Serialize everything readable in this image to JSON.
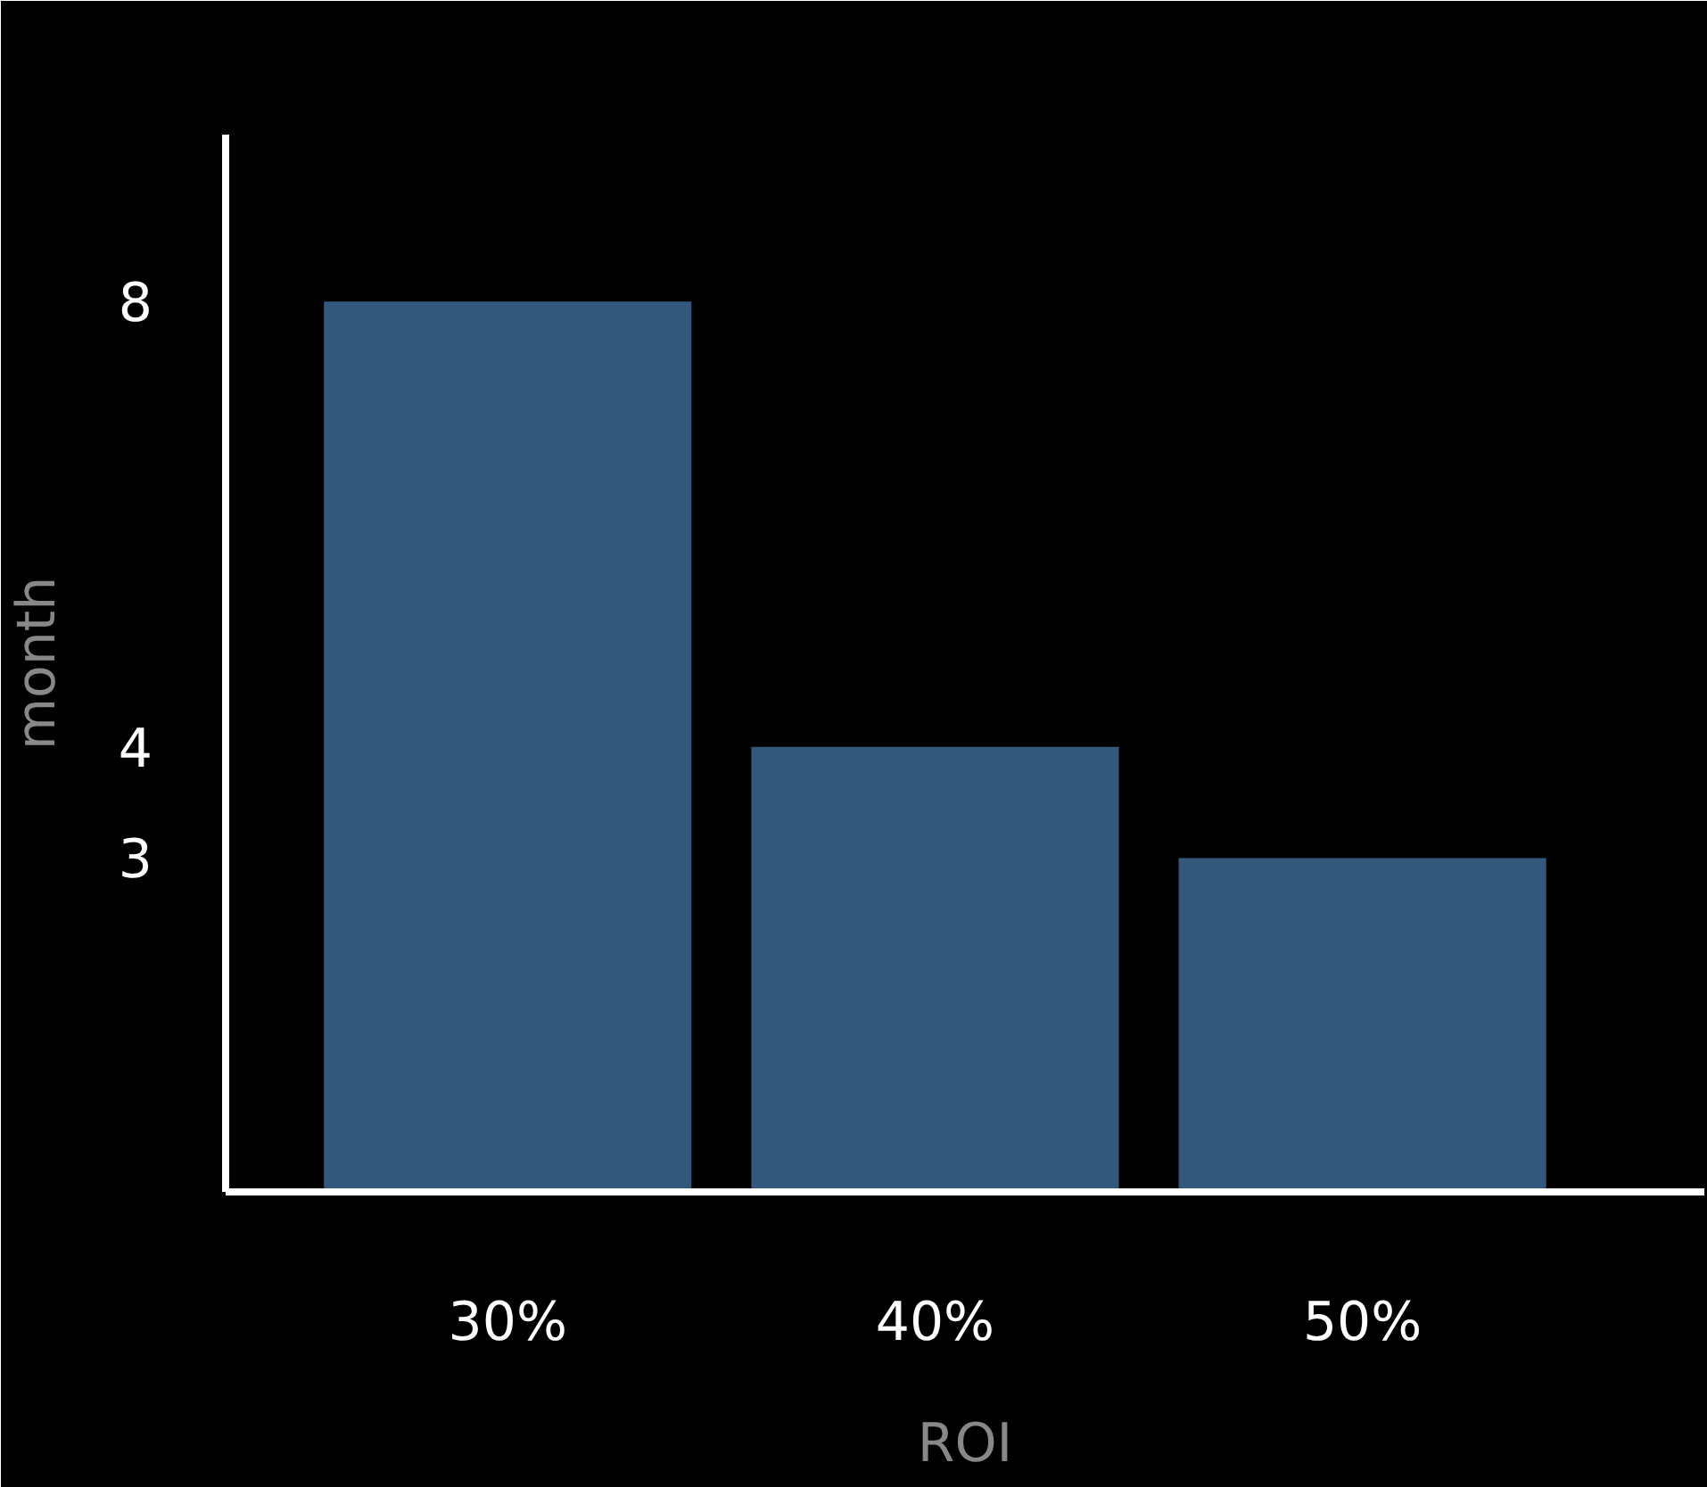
{
  "chart_data": {
    "type": "bar",
    "xlabel": "ROI",
    "ylabel": "month",
    "categories": [
      "30%",
      "40%",
      "50%"
    ],
    "values": [
      8,
      4,
      3
    ],
    "color": "#34587c",
    "ylim": [
      0,
      9.5
    ],
    "yticks": [
      3,
      4,
      8
    ],
    "grid": false
  }
}
